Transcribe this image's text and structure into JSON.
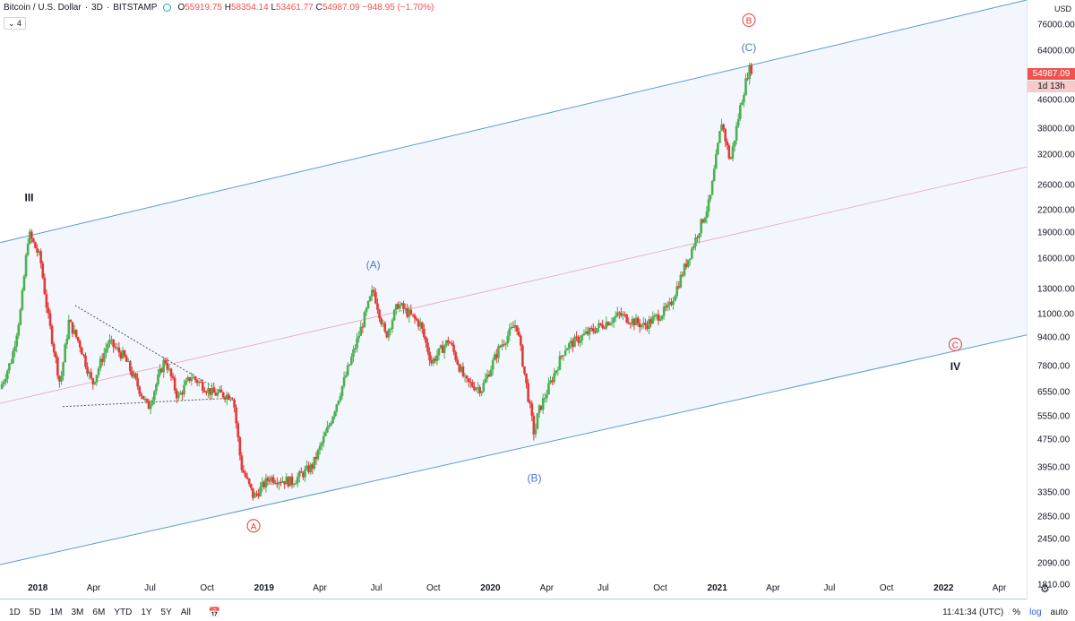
{
  "legend": {
    "symbol": "Bitcoin / U.S. Dollar",
    "interval": "3D",
    "exchange": "BITSTAMP",
    "open_label": "O",
    "open": "55919.75",
    "high_label": "H",
    "high": "58354.14",
    "low_label": "L",
    "low": "53461.77",
    "close_label": "C",
    "close": "54987.09",
    "change": "−948.95 (−1.70%)"
  },
  "indicator_toggle": "⌄ 4",
  "price_scale": {
    "unit_top": "USD",
    "labels": [
      "76000.00",
      "64000.00",
      "46000.00",
      "38000.00",
      "32000.00",
      "26000.00",
      "22000.00",
      "19000.00",
      "16000.00",
      "13000.00",
      "11000.00",
      "9400.00",
      "7800.00",
      "6550.00",
      "5550.00",
      "4750.00",
      "3950.00",
      "3350.00",
      "2850.00",
      "2450.00",
      "2090.00",
      "1810.00"
    ],
    "last_price": "54987.09",
    "countdown": "1d 13h"
  },
  "time_axis": {
    "labels": [
      {
        "text": "2018",
        "year": true
      },
      {
        "text": "Apr",
        "year": false
      },
      {
        "text": "Jul",
        "year": false
      },
      {
        "text": "Oct",
        "year": false
      },
      {
        "text": "2019",
        "year": true
      },
      {
        "text": "Apr",
        "year": false
      },
      {
        "text": "Jul",
        "year": false
      },
      {
        "text": "Oct",
        "year": false
      },
      {
        "text": "2020",
        "year": true
      },
      {
        "text": "Apr",
        "year": false
      },
      {
        "text": "Jul",
        "year": false
      },
      {
        "text": "Oct",
        "year": false
      },
      {
        "text": "2021",
        "year": true
      },
      {
        "text": "Apr",
        "year": false
      },
      {
        "text": "Jul",
        "year": false
      },
      {
        "text": "Oct",
        "year": false
      },
      {
        "text": "2022",
        "year": true
      },
      {
        "text": "Apr",
        "year": false
      }
    ]
  },
  "annotations": {
    "wave_III": "III",
    "wave_IV": "IV",
    "wave_A_circle": "A",
    "wave_B_circle": "B",
    "wave_C_circle": "C",
    "sub_A": "(A)",
    "sub_B": "(B)",
    "sub_C": "(C)"
  },
  "bottom_bar": {
    "ranges": [
      "1D",
      "5D",
      "1M",
      "3M",
      "6M",
      "YTD",
      "1Y",
      "5Y",
      "All"
    ],
    "calendar_icon": "calendar-icon",
    "clock": "11:41:34 (UTC)",
    "percent": "%",
    "log": "log",
    "auto": "auto"
  },
  "colors": {
    "up": "#4caf50",
    "down": "#e53935",
    "channel": "#5b9bd5",
    "channel_fill": "#f3f6fd",
    "median": "#e8a6b4",
    "wave_red": "#e53935",
    "wave_blue": "#4a79c5"
  },
  "chart_data": {
    "type": "candlestick",
    "title": "Bitcoin / U.S. Dollar 3D BITSTAMP",
    "scale": "log",
    "ylim": [
      1650,
      90000
    ],
    "x_range": [
      "2017-11-01",
      "2022-05-15"
    ],
    "series": [
      {
        "name": "BTCUSD",
        "points": [
          [
            "2017-11-01",
            6700
          ],
          [
            "2017-11-20",
            8200
          ],
          [
            "2017-12-05",
            11500
          ],
          [
            "2017-12-17",
            19000
          ],
          [
            "2018-01-05",
            16000
          ],
          [
            "2018-01-17",
            11000
          ],
          [
            "2018-02-06",
            6900
          ],
          [
            "2018-02-20",
            10500
          ],
          [
            "2018-03-10",
            9000
          ],
          [
            "2018-03-30",
            6900
          ],
          [
            "2018-04-25",
            9200
          ],
          [
            "2018-05-20",
            8300
          ],
          [
            "2018-06-28",
            5900
          ],
          [
            "2018-07-25",
            8200
          ],
          [
            "2018-08-15",
            6300
          ],
          [
            "2018-09-05",
            7300
          ],
          [
            "2018-10-10",
            6500
          ],
          [
            "2018-11-12",
            6400
          ],
          [
            "2018-11-25",
            4000
          ],
          [
            "2018-12-15",
            3250
          ],
          [
            "2019-01-10",
            3700
          ],
          [
            "2019-02-15",
            3600
          ],
          [
            "2019-03-20",
            4000
          ],
          [
            "2019-04-15",
            5200
          ],
          [
            "2019-05-20",
            8000
          ],
          [
            "2019-06-26",
            13000
          ],
          [
            "2019-07-16",
            9500
          ],
          [
            "2019-08-05",
            11800
          ],
          [
            "2019-09-10",
            10300
          ],
          [
            "2019-09-28",
            8000
          ],
          [
            "2019-10-26",
            9300
          ],
          [
            "2019-11-22",
            7000
          ],
          [
            "2019-12-18",
            6700
          ],
          [
            "2020-01-15",
            8800
          ],
          [
            "2020-02-12",
            10400
          ],
          [
            "2020-03-12",
            4900
          ],
          [
            "2020-03-18",
            5700
          ],
          [
            "2020-04-30",
            8800
          ],
          [
            "2020-06-01",
            9600
          ],
          [
            "2020-07-27",
            11000
          ],
          [
            "2020-09-05",
            10200
          ],
          [
            "2020-10-15",
            11500
          ],
          [
            "2020-11-15",
            16000
          ],
          [
            "2020-12-20",
            23500
          ],
          [
            "2021-01-08",
            40000
          ],
          [
            "2021-01-22",
            30500
          ],
          [
            "2021-02-08",
            45000
          ],
          [
            "2021-02-21",
            57000
          ],
          [
            "2021-02-26",
            54987.09
          ]
        ]
      }
    ],
    "channel": {
      "upper": [
        [
          "2017-11-01",
          17800
        ],
        [
          "2022-05-15",
          90000
        ]
      ],
      "lower": [
        [
          "2017-11-01",
          2070
        ],
        [
          "2022-05-15",
          9600
        ]
      ],
      "median": [
        [
          "2017-11-01",
          6080
        ],
        [
          "2022-05-15",
          29500
        ]
      ]
    },
    "triangle": {
      "top": [
        [
          "2018-03-02",
          11700
        ],
        [
          "2018-11-10",
          6300
        ]
      ],
      "bottom": [
        [
          "2018-02-10",
          5950
        ],
        [
          "2018-11-10",
          6300
        ]
      ]
    }
  }
}
